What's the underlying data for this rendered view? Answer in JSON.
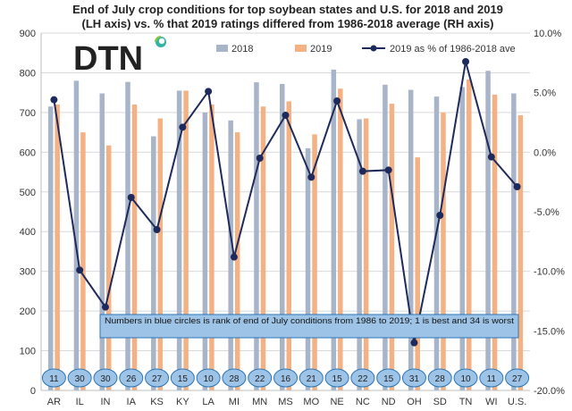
{
  "chart_data": {
    "type": "bar",
    "title_lines": [
      "End of July crop conditions for top soybean states and U.S. for 2018 and 2019",
      "(LH axis) vs. % that 2019 ratings differed from 1986-2018 average (RH axis)"
    ],
    "categories": [
      "AR",
      "IL",
      "IN",
      "IA",
      "KS",
      "KY",
      "LA",
      "MI",
      "MN",
      "MS",
      "MO",
      "NE",
      "NC",
      "ND",
      "OH",
      "SD",
      "TN",
      "WI",
      "U.S."
    ],
    "series": [
      {
        "name": "2018",
        "kind": "bar",
        "axis": "left",
        "color": "#a8b5c8",
        "values": [
          715,
          780,
          748,
          777,
          640,
          755,
          700,
          680,
          776,
          772,
          610,
          808,
          683,
          770,
          757,
          740,
          764,
          805,
          748
        ]
      },
      {
        "name": "2019",
        "kind": "bar",
        "axis": "left",
        "color": "#f4b183",
        "values": [
          720,
          650,
          617,
          720,
          685,
          755,
          720,
          650,
          715,
          728,
          645,
          760,
          685,
          722,
          587,
          700,
          783,
          745,
          693
        ]
      },
      {
        "name": "2019 as % of 1986-2018 ave",
        "kind": "line",
        "axis": "right",
        "color": "#1f2a5c",
        "values": [
          4.4,
          -9.9,
          -13.0,
          -3.8,
          -6.5,
          2.1,
          5.1,
          -8.8,
          -0.5,
          3.1,
          -2.1,
          4.3,
          -1.6,
          -1.5,
          -16.0,
          -5.3,
          7.6,
          -0.4,
          -2.9
        ]
      }
    ],
    "ranks": [
      11,
      30,
      30,
      26,
      27,
      15,
      10,
      28,
      22,
      16,
      21,
      15,
      22,
      15,
      31,
      28,
      10,
      11,
      27
    ],
    "y_left": {
      "min": 0,
      "max": 900,
      "step": 100,
      "ticks": [
        "0",
        "100",
        "200",
        "300",
        "400",
        "500",
        "600",
        "700",
        "800",
        "900"
      ]
    },
    "y_right": {
      "min": -20,
      "max": 10,
      "step": 5,
      "ticks": [
        "-20.0%",
        "-15.0%",
        "-10.0%",
        "-5.0%",
        "0.0%",
        "5.0%",
        "10.0%"
      ]
    },
    "legend_position": "top-right",
    "note": "Numbers in blue circles is rank of end of July conditions from 1986 to 2019; 1 is best and 34 is worst",
    "logo_text": "DTN"
  }
}
